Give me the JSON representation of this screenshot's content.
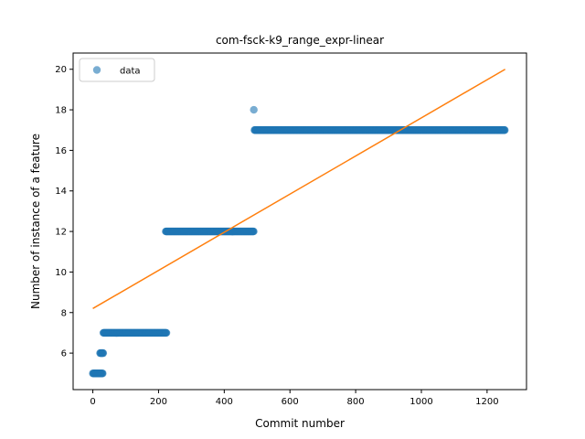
{
  "chart_data": {
    "type": "scatter",
    "title": "com-fsck-k9_range_expr-linear",
    "xlabel": "Commit number",
    "ylabel": "Number of instance of a feature",
    "xlim": [
      -60,
      1320
    ],
    "ylim": [
      4.2,
      20.8
    ],
    "xticks": [
      0,
      200,
      400,
      600,
      800,
      1000,
      1200
    ],
    "yticks": [
      6,
      8,
      10,
      12,
      14,
      16,
      18,
      20
    ],
    "grid": false,
    "legend": {
      "placement": "top-left",
      "entries": [
        "data"
      ]
    },
    "series": [
      {
        "name": "data",
        "kind": "points",
        "color": "#1f77b4",
        "alpha": 0.6,
        "segments": [
          {
            "x_start": 0,
            "x_end": 30,
            "y": 5
          },
          {
            "x_start": 22,
            "x_end": 32,
            "y": 6
          },
          {
            "x_start": 32,
            "x_end": 225,
            "y": 7
          },
          {
            "x_start": 222,
            "x_end": 490,
            "y": 12
          },
          {
            "x_start": 492,
            "x_end": 1255,
            "y": 17
          }
        ],
        "outliers": [
          {
            "x": 490,
            "y": 18
          }
        ]
      },
      {
        "name": "",
        "kind": "line",
        "color": "#ff7f0e",
        "x": [
          0,
          1255
        ],
        "y": [
          8.2,
          20
        ]
      }
    ]
  }
}
